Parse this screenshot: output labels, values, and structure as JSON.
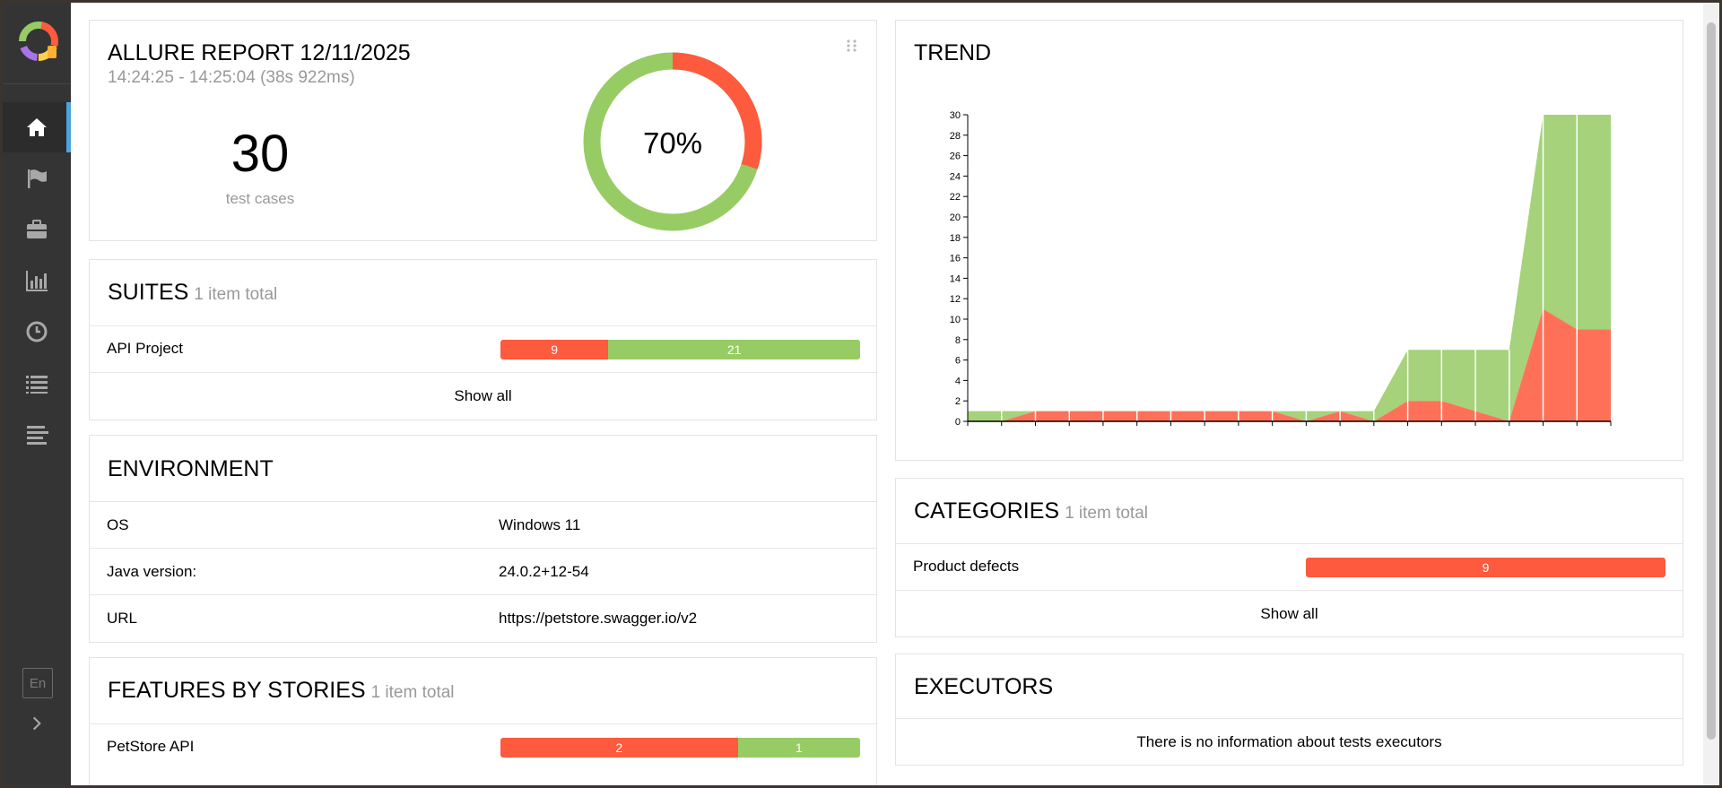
{
  "sidebar": {
    "nav_items": [
      "home",
      "flag",
      "briefcase",
      "bar-chart",
      "clock",
      "list",
      "lines"
    ],
    "language": "En"
  },
  "summary": {
    "title": "ALLURE REPORT 12/11/2025",
    "time_range": "14:24:25 - 14:25:04 (38s 922ms)",
    "count": "30",
    "count_label": "test cases",
    "percent": "70%",
    "passed_fraction": 0.7,
    "failed_fraction": 0.3
  },
  "suites": {
    "title": "SUITES",
    "subtitle": "1 item total",
    "rows": [
      {
        "label": "API Project",
        "failed": "9",
        "passed": "21"
      }
    ],
    "show_all": "Show all"
  },
  "environment": {
    "title": "ENVIRONMENT",
    "rows": [
      {
        "key": "OS",
        "value": "Windows 11"
      },
      {
        "key": "Java version:",
        "value": "24.0.2+12-54"
      },
      {
        "key": "URL",
        "value": "https://petstore.swagger.io/v2"
      }
    ]
  },
  "features": {
    "title": "FEATURES BY STORIES",
    "subtitle": "1 item total",
    "rows": [
      {
        "label": "PetStore API",
        "failed": "2",
        "passed": "1"
      }
    ]
  },
  "trend": {
    "title": "TREND"
  },
  "categories": {
    "title": "CATEGORIES",
    "subtitle": "1 item total",
    "rows": [
      {
        "label": "Product defects",
        "failed": "9"
      }
    ],
    "show_all": "Show all"
  },
  "executors": {
    "title": "EXECUTORS",
    "message": "There is no information about tests executors"
  },
  "colors": {
    "failed": "#fd5a3e",
    "passed": "#97cc64",
    "trend_failed": "#ff7059",
    "trend_passed": "#a5d27a",
    "accent": "#4ea2e0"
  },
  "chart_data": {
    "type": "area",
    "title": "TREND",
    "ylim": [
      0,
      30
    ],
    "yticks": [
      "0",
      "2",
      "4",
      "6",
      "8",
      "10",
      "12",
      "14",
      "16",
      "18",
      "20",
      "22",
      "24",
      "26",
      "28",
      "30"
    ],
    "x": [
      1,
      2,
      3,
      4,
      5,
      6,
      7,
      8,
      9,
      10,
      11,
      12,
      13,
      14,
      15,
      16,
      17,
      18,
      19,
      20
    ],
    "series": [
      {
        "values": [
          0,
          0,
          1,
          1,
          1,
          1,
          1,
          1,
          1,
          1,
          0,
          1,
          0,
          2,
          2,
          1,
          0,
          11,
          9,
          9
        ]
      },
      {
        "values": [
          1,
          1,
          0,
          0,
          0,
          0,
          0,
          0,
          0,
          0,
          1,
          0,
          1,
          5,
          5,
          6,
          7,
          19,
          21,
          21
        ]
      }
    ],
    "stacked": true,
    "grid": false
  }
}
